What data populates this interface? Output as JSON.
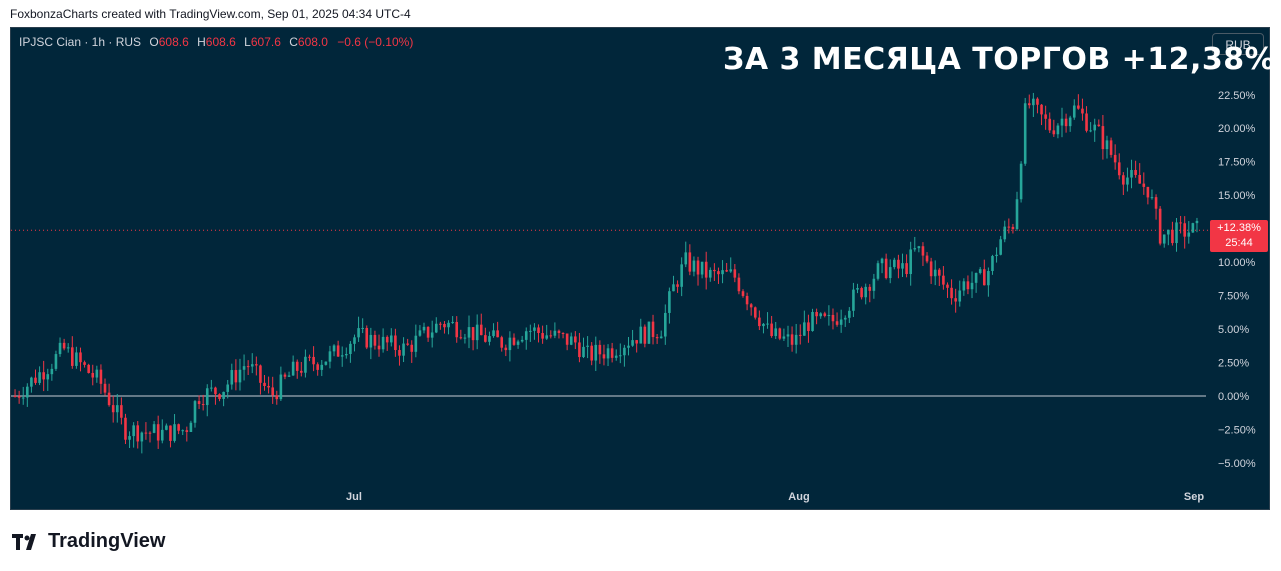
{
  "header": {
    "credit": "FoxbonzaCharts created with TradingView.com, Sep 01, 2025 04:34 UTC-4"
  },
  "legend": {
    "symbol": "IPJSC Cian · 1h · RUS",
    "o_label": "O",
    "o_value": "608.6",
    "h_label": "H",
    "h_value": "608.6",
    "l_label": "L",
    "l_value": "607.6",
    "c_label": "C",
    "c_value": "608.0",
    "change": "−0.6 (−0.10%)"
  },
  "currency_button": "RUB",
  "headline": "ЗА 3 МЕСЯЦА ТОРГОВ +12,38%",
  "price_tag": {
    "value": "+12.38%",
    "countdown": "25:44"
  },
  "logo": {
    "text": "TradingView"
  },
  "colors": {
    "background": "#01263a",
    "up": "#26a69a",
    "down": "#f23645",
    "text": "#d1d4dc"
  },
  "chart_data": {
    "type": "candlestick",
    "y_unit": "%",
    "ylim": [
      -6.5,
      24.5
    ],
    "y_ticks": [
      "22.50%",
      "20.00%",
      "17.50%",
      "15.00%",
      "12.50%",
      "10.00%",
      "7.50%",
      "5.00%",
      "2.50%",
      "0.00%",
      "−2.50%",
      "−5.00%"
    ],
    "y_tick_values": [
      22.5,
      20,
      17.5,
      15,
      12.5,
      10,
      7.5,
      5,
      2.5,
      0,
      -2.5,
      -5
    ],
    "x_ticks": [
      "Jul",
      "Aug",
      "Sep"
    ],
    "current_change": 12.38,
    "baseline": 0,
    "trend": [
      [
        0,
        0
      ],
      [
        3,
        2.5
      ],
      [
        4,
        3.5
      ],
      [
        7,
        1
      ],
      [
        9,
        -2.5
      ],
      [
        12,
        -2.8
      ],
      [
        14,
        -2.5
      ],
      [
        15,
        0
      ],
      [
        17,
        0.5
      ],
      [
        19,
        2.5
      ],
      [
        21,
        0
      ],
      [
        23,
        2
      ],
      [
        26,
        3
      ],
      [
        28,
        4.5
      ],
      [
        30,
        4
      ],
      [
        32,
        3.5
      ],
      [
        35,
        5.5
      ],
      [
        37,
        5
      ],
      [
        38,
        4.5
      ],
      [
        40,
        4
      ],
      [
        42,
        5
      ],
      [
        44,
        4.5
      ],
      [
        46,
        4
      ],
      [
        47,
        3
      ],
      [
        49,
        3.5
      ],
      [
        51,
        4.5
      ],
      [
        53,
        5
      ],
      [
        54,
        8
      ],
      [
        55,
        10
      ],
      [
        57,
        9
      ],
      [
        59,
        9
      ],
      [
        60,
        7.5
      ],
      [
        62,
        4.5
      ],
      [
        64,
        4
      ],
      [
        65,
        5.5
      ],
      [
        67,
        5.5
      ],
      [
        69,
        7.5
      ],
      [
        71,
        9.5
      ],
      [
        73,
        9.5
      ],
      [
        74,
        11
      ],
      [
        76,
        8.5
      ],
      [
        77,
        7.5
      ],
      [
        78,
        8.5
      ],
      [
        79,
        8.5
      ],
      [
        80,
        9.5
      ],
      [
        81,
        12
      ],
      [
        82,
        13
      ],
      [
        83,
        22
      ],
      [
        85,
        20
      ],
      [
        87,
        21.5
      ],
      [
        89,
        19.5
      ],
      [
        91,
        16.5
      ],
      [
        93,
        15.5
      ],
      [
        94,
        12
      ],
      [
        96,
        12.3
      ],
      [
        97,
        12.38
      ]
    ]
  }
}
